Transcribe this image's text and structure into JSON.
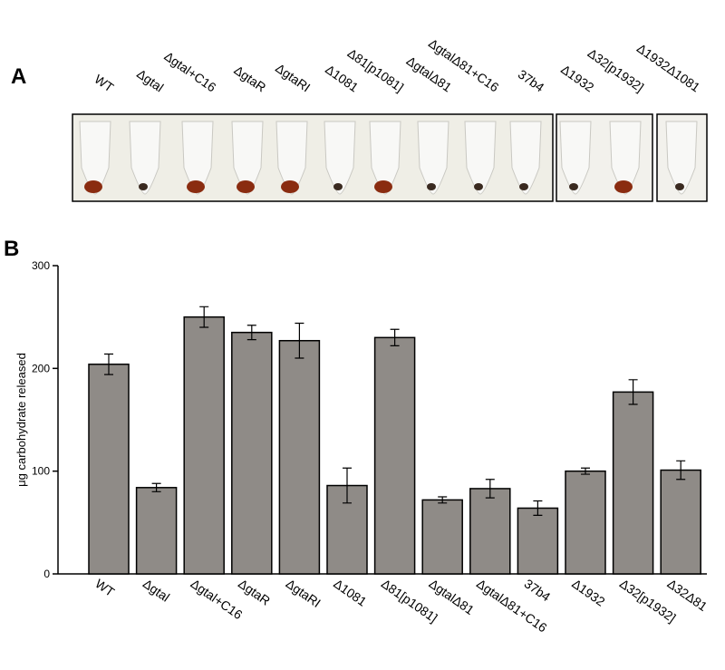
{
  "panel_a": {
    "letter": "A",
    "labels": [
      "WT",
      "Δgtal",
      "Δgtal+C16",
      "ΔgtaR",
      "ΔgtaRI",
      "Δ1081",
      "Δ81[p1081]",
      "ΔgtalΔ81",
      "ΔgtalΔ81+C16",
      "37b4",
      "Δ1932",
      "Δ32[p1932]",
      "Δ1932Δ1081"
    ]
  },
  "chart_data": {
    "type": "bar",
    "panel_letter": "B",
    "ylabel": "μg carbohydrate released",
    "categories": [
      "WT",
      "Δgtal",
      "Δgtal+C16",
      "ΔgtaR",
      "ΔgtaRI",
      "Δ1081",
      "Δ81[p1081]",
      "ΔgtalΔ81",
      "ΔgtalΔ81+C16",
      "37b4",
      "Δ1932",
      "Δ32[p1932]",
      "Δ32Δ81"
    ],
    "values": [
      204,
      84,
      250,
      235,
      227,
      86,
      230,
      72,
      83,
      64,
      100,
      177,
      101
    ],
    "errors": [
      10,
      4,
      10,
      7,
      17,
      17,
      8,
      3,
      9,
      7,
      3,
      12,
      9
    ],
    "color": "#8f8b87",
    "ylim": [
      0,
      300
    ],
    "yticks": [
      0,
      100,
      200,
      300
    ]
  }
}
